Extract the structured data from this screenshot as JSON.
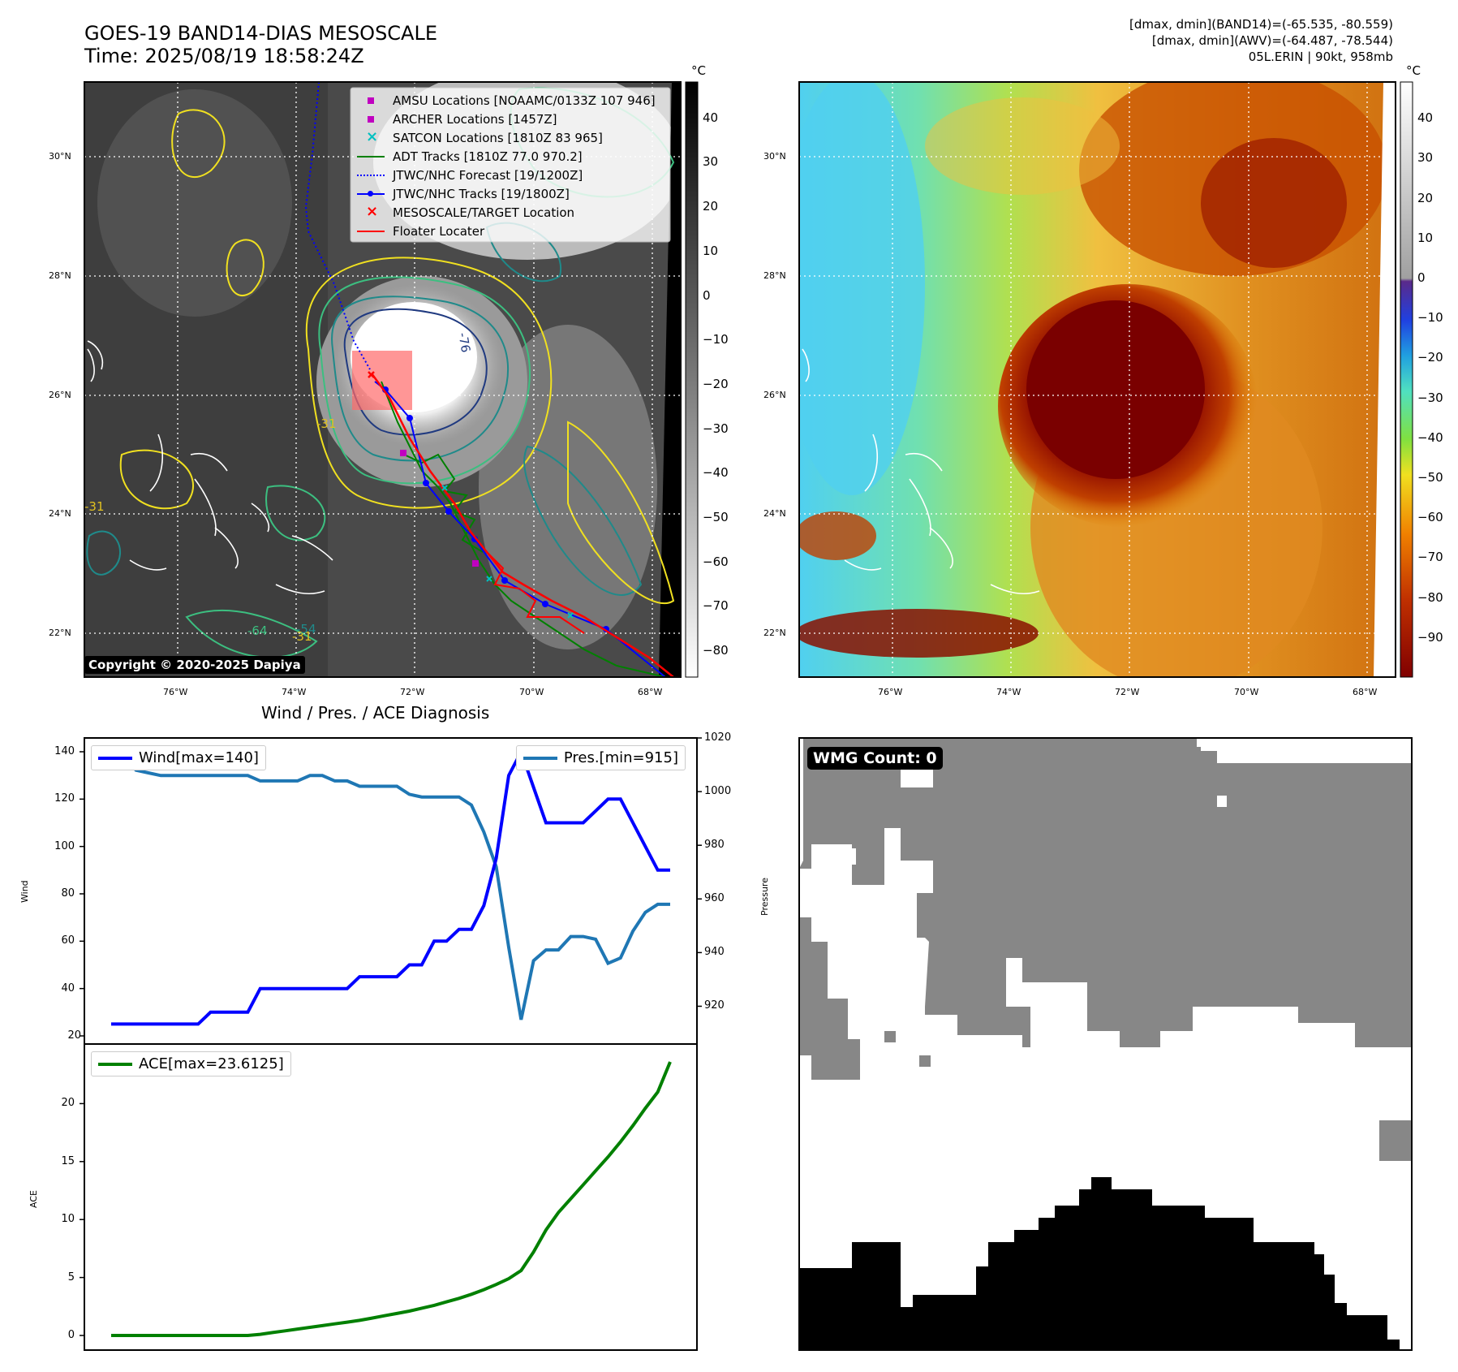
{
  "header": {
    "title": "GOES-19 BAND14-DIAS MESOSCALE",
    "time": "Time: 2025/08/19 18:58:24Z"
  },
  "info": {
    "line1": "[dmax, dmin](BAND14)=(-65.535, -80.559)",
    "line2": "[dmax, dmin](AWV)=(-64.487, -78.544)",
    "line3": "05L.ERIN | 90kt, 958mb"
  },
  "map": {
    "lat_labels": [
      "30°N",
      "28°N",
      "26°N",
      "24°N",
      "22°N"
    ],
    "lon_labels": [
      "76°W",
      "74°W",
      "72°W",
      "70°W",
      "68°W"
    ],
    "copyright": "Copyright © 2020-2025 Dapiya",
    "contour_labels": [
      "-76",
      "-31",
      "-31",
      "-31",
      "-64",
      "-54"
    ]
  },
  "legend": {
    "items": [
      {
        "label": "AMSU Locations [NOAAMC/0133Z 107 946]",
        "marker": "square",
        "color": "#c000c0"
      },
      {
        "label": "ARCHER Locations [1457Z]",
        "marker": "square",
        "color": "#c000c0"
      },
      {
        "label": "SATCON Locations [1810Z 83 965]",
        "marker": "x",
        "color": "#00c0c0"
      },
      {
        "label": "ADT Tracks [1810Z 77.0 970.2]",
        "marker": "line",
        "color": "#008000"
      },
      {
        "label": "JTWC/NHC Forecast [19/1200Z]",
        "marker": "dotted",
        "color": "#0000ff"
      },
      {
        "label": "JTWC/NHC Tracks [19/1800Z]",
        "marker": "dotline",
        "color": "#0000ff"
      },
      {
        "label": "MESOSCALE/TARGET Location",
        "marker": "x",
        "color": "#ff0000"
      },
      {
        "label": "Floater Locater",
        "marker": "line",
        "color": "#ff0000"
      }
    ]
  },
  "colorbar_gray": {
    "unit": "°C",
    "ticks": [
      "40",
      "30",
      "20",
      "10",
      "0",
      "−10",
      "−20",
      "−30",
      "−40",
      "−50",
      "−60",
      "−70",
      "−80"
    ]
  },
  "colorbar_color": {
    "unit": "°C",
    "ticks": [
      "40",
      "30",
      "20",
      "10",
      "0",
      "−10",
      "−20",
      "−30",
      "−40",
      "−50",
      "−60",
      "−70",
      "−80",
      "−90"
    ]
  },
  "chart_data": [
    {
      "type": "line",
      "title": "Wind / Pres. / ACE Diagnosis",
      "ylabel": "Wind",
      "ylabel2": "Pressure",
      "ylim": [
        20,
        145
      ],
      "ylim2": [
        910,
        1020
      ],
      "yticks": [
        "140",
        "120",
        "100",
        "80",
        "60",
        "40",
        "20"
      ],
      "yticks2": [
        "1020",
        "1000",
        "980",
        "960",
        "940",
        "920"
      ],
      "series": [
        {
          "name": "Wind[max=140]",
          "color": "#0000ff",
          "values": [
            25,
            25,
            25,
            25,
            25,
            25,
            25,
            25,
            30,
            30,
            30,
            30,
            40,
            40,
            40,
            40,
            40,
            40,
            40,
            40,
            45,
            45,
            45,
            45,
            50,
            50,
            60,
            60,
            65,
            65,
            75,
            95,
            130,
            140,
            125,
            110,
            110,
            110,
            110,
            115,
            120,
            120,
            110,
            100,
            90,
            90
          ]
        },
        {
          "name": "Pres.[min=915]",
          "color": "#1f77b4",
          "values": [
            1014,
            1014,
            1008,
            1007,
            1006,
            1006,
            1006,
            1006,
            1006,
            1006,
            1006,
            1006,
            1004,
            1004,
            1004,
            1004,
            1006,
            1006,
            1004,
            1004,
            1002,
            1002,
            1002,
            1002,
            999,
            998,
            998,
            998,
            998,
            995,
            985,
            972,
            942,
            915,
            937,
            941,
            941,
            946,
            946,
            945,
            936,
            938,
            948,
            955,
            958,
            958
          ]
        }
      ]
    },
    {
      "type": "line",
      "ylabel": "ACE",
      "ylim": [
        -1,
        24.5
      ],
      "yticks": [
        "20",
        "15",
        "10",
        "5",
        "0"
      ],
      "series": [
        {
          "name": "ACE[max=23.6125]",
          "color": "#008000",
          "values": [
            0,
            0,
            0,
            0,
            0,
            0,
            0,
            0,
            0,
            0,
            0,
            0,
            0.1,
            0.25,
            0.4,
            0.55,
            0.7,
            0.85,
            1.0,
            1.15,
            1.3,
            1.5,
            1.7,
            1.9,
            2.1,
            2.35,
            2.6,
            2.9,
            3.2,
            3.55,
            3.95,
            4.4,
            4.9,
            5.6,
            7.2,
            9.1,
            10.6,
            11.8,
            13.0,
            14.2,
            15.4,
            16.7,
            18.1,
            19.6,
            21.0,
            23.6
          ]
        }
      ]
    }
  ],
  "wmg": {
    "label": "WMG Count: 0"
  }
}
